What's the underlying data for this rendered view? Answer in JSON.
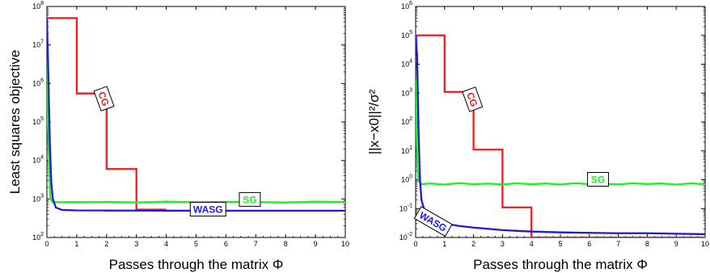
{
  "chart_data": [
    {
      "type": "line",
      "xlabel": "Passes through the matrix Φ",
      "ylabel": "Least squares objective",
      "xlim": [
        0,
        10
      ],
      "ylim": [
        100,
        100000000
      ],
      "yscale": "log",
      "x_ticks": [
        "0",
        "1",
        "2",
        "3",
        "4",
        "5",
        "6",
        "7",
        "8",
        "9",
        "10"
      ],
      "y_ticks": [
        {
          "base": "10",
          "exp": "2"
        },
        {
          "base": "10",
          "exp": "3"
        },
        {
          "base": "10",
          "exp": "4"
        },
        {
          "base": "10",
          "exp": "5"
        },
        {
          "base": "10",
          "exp": "6"
        },
        {
          "base": "10",
          "exp": "7"
        },
        {
          "base": "10",
          "exp": "8"
        }
      ],
      "series": [
        {
          "name": "CG",
          "color": "#ee1c1c",
          "step": true,
          "x": [
            0,
            1,
            1,
            2,
            2,
            3,
            3,
            4
          ],
          "y": [
            50000000,
            50000000,
            550000,
            550000,
            6000,
            6000,
            530,
            530
          ]
        },
        {
          "name": "SG",
          "color": "#22ee22",
          "x": [
            0,
            0.03,
            0.08,
            0.12,
            0.2,
            1,
            2,
            3,
            4,
            5,
            6,
            7,
            8,
            9,
            10
          ],
          "y": [
            5000000,
            100000,
            5000,
            1000,
            820,
            830,
            840,
            810,
            850,
            820,
            840,
            830,
            810,
            850,
            830
          ]
        },
        {
          "name": "WASG",
          "color": "#1a1ae0",
          "x": [
            0,
            0.05,
            0.1,
            0.15,
            0.2,
            0.3,
            0.5,
            1,
            2,
            3,
            4,
            5,
            6,
            7,
            8,
            9,
            10
          ],
          "y": [
            50000000,
            1500000,
            25000,
            2500,
            1000,
            600,
            520,
            505,
            500,
            498,
            497,
            496,
            496,
            495,
            495,
            495,
            495
          ]
        }
      ],
      "annotations": [
        {
          "text": "CG",
          "x": 1.9,
          "y": 400000,
          "rotate": 70,
          "color": "#ee1c1c"
        },
        {
          "text": "WASG",
          "x": 5.4,
          "y": 530,
          "rotate": 0,
          "color": "#1a1ae0"
        },
        {
          "text": "SG",
          "x": 6.8,
          "y": 950,
          "rotate": 0,
          "color": "#22ee22"
        }
      ]
    },
    {
      "type": "line",
      "xlabel": "Passes through the matrix Φ",
      "ylabel": "||x−x0||²/σ²",
      "xlim": [
        0,
        10
      ],
      "ylim": [
        0.01,
        1000000
      ],
      "yscale": "log",
      "x_ticks": [
        "0",
        "1",
        "2",
        "3",
        "4",
        "5",
        "6",
        "7",
        "8",
        "9",
        "10"
      ],
      "y_ticks": [
        {
          "base": "10",
          "exp": "-2"
        },
        {
          "base": "10",
          "exp": "-1"
        },
        {
          "base": "10",
          "exp": "0"
        },
        {
          "base": "10",
          "exp": "1"
        },
        {
          "base": "10",
          "exp": "2"
        },
        {
          "base": "10",
          "exp": "3"
        },
        {
          "base": "10",
          "exp": "4"
        },
        {
          "base": "10",
          "exp": "5"
        },
        {
          "base": "10",
          "exp": "6"
        }
      ],
      "series": [
        {
          "name": "CG",
          "color": "#ee1c1c",
          "step": true,
          "x": [
            0,
            1,
            1,
            2,
            2,
            3,
            3,
            4,
            4,
            10
          ],
          "y": [
            100000,
            100000,
            1100,
            1100,
            11,
            11,
            0.11,
            0.11,
            0.01,
            0.01
          ]
        },
        {
          "name": "SG",
          "color": "#22ee22",
          "x": [
            0,
            0.03,
            0.06,
            0.1,
            0.2,
            0.5,
            1,
            1.5,
            2,
            2.5,
            3,
            3.5,
            4,
            4.5,
            5,
            5.5,
            6,
            6.5,
            7,
            7.5,
            8,
            8.5,
            9,
            9.5,
            10
          ],
          "y": [
            3000,
            50,
            3,
            0.9,
            0.7,
            0.74,
            0.68,
            0.76,
            0.7,
            0.73,
            0.69,
            0.75,
            0.7,
            0.74,
            0.68,
            0.76,
            0.7,
            0.72,
            0.69,
            0.75,
            0.71,
            0.74,
            0.68,
            0.75,
            0.7
          ]
        },
        {
          "name": "WASG",
          "color": "#1a1ae0",
          "x": [
            0,
            0.05,
            0.1,
            0.15,
            0.2,
            0.3,
            0.5,
            1,
            1.5,
            2,
            3,
            4,
            5,
            6,
            7,
            8,
            9,
            10
          ],
          "y": [
            100000,
            20000,
            50,
            1,
            0.2,
            0.09,
            0.05,
            0.03,
            0.025,
            0.022,
            0.018,
            0.016,
            0.015,
            0.0145,
            0.014,
            0.014,
            0.0135,
            0.013
          ]
        }
      ],
      "annotations": [
        {
          "text": "CG",
          "x": 1.95,
          "y": 600,
          "rotate": 70,
          "color": "#ee1c1c"
        },
        {
          "text": "WASG",
          "x": 0.6,
          "y": 0.035,
          "rotate": 30,
          "color": "#1a1ae0"
        },
        {
          "text": "SG",
          "x": 6.3,
          "y": 1.0,
          "rotate": 0,
          "color": "#22ee22"
        }
      ]
    }
  ]
}
